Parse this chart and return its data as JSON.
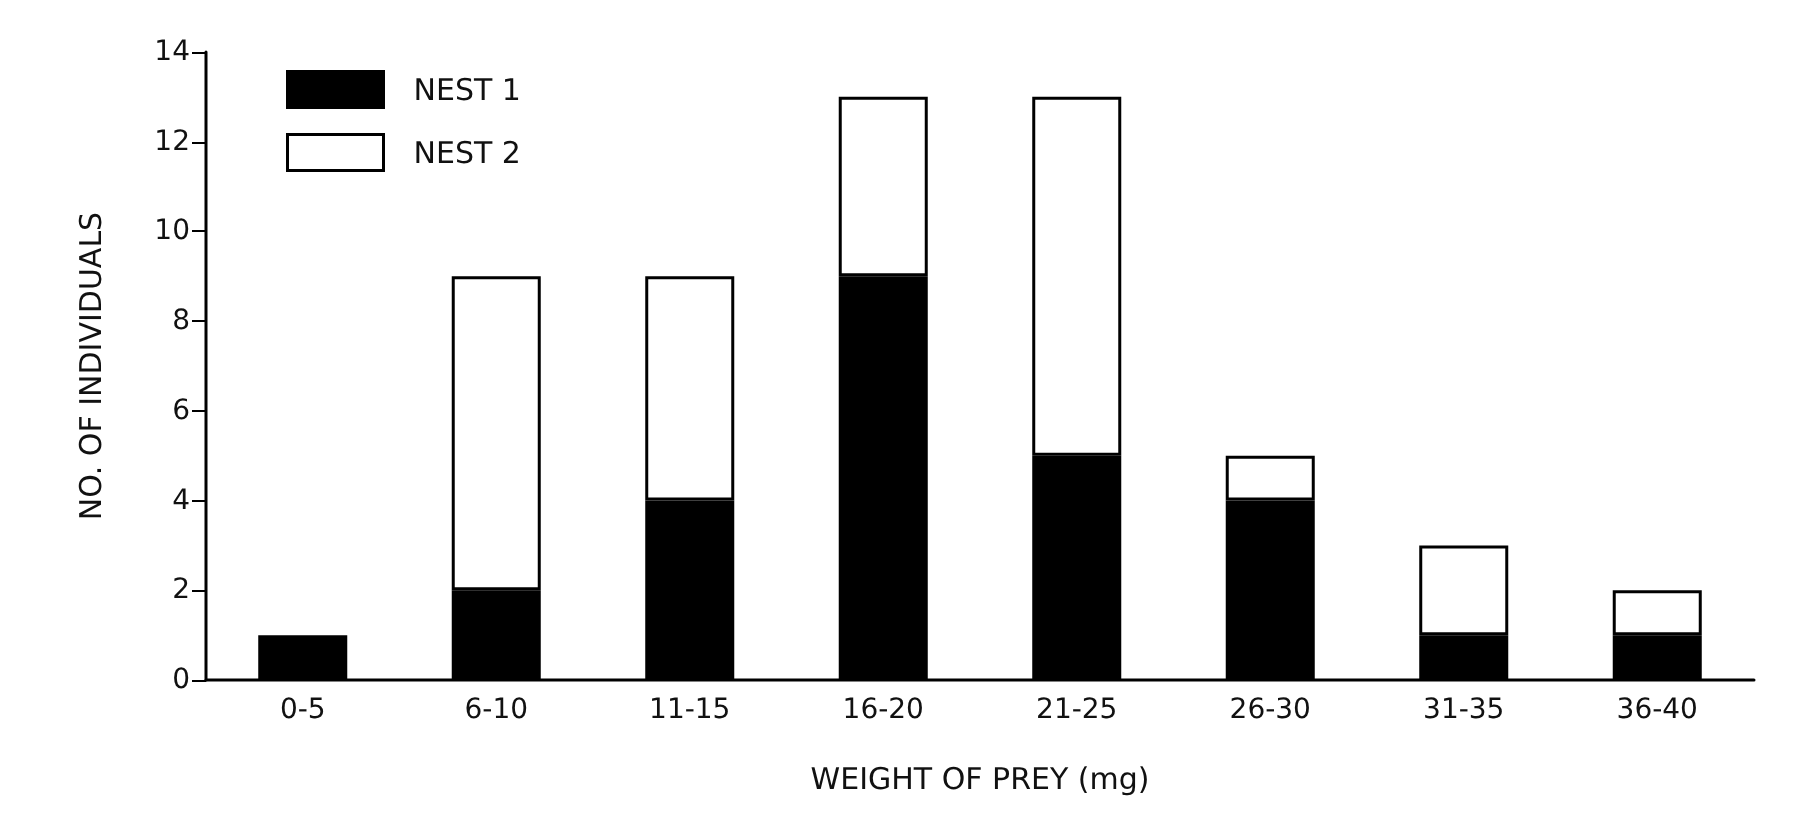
{
  "chart_data": {
    "type": "bar",
    "stacked": true,
    "xlabel": "WEIGHT OF PREY (mg)",
    "ylabel": "NO. OF INDIVIDUALS",
    "categories": [
      "0-5",
      "6-10",
      "11-15",
      "16-20",
      "21-25",
      "26-30",
      "31-35",
      "36-40"
    ],
    "series": [
      {
        "name": "NEST 1",
        "color": "#000000",
        "values": [
          1,
          2,
          4,
          9,
          5,
          4,
          1,
          1
        ]
      },
      {
        "name": "NEST 2",
        "color": "#ffffff",
        "values": [
          0,
          7,
          5,
          4,
          8,
          1,
          2,
          1
        ]
      }
    ],
    "ylim": [
      0,
      14
    ],
    "yticks": [
      0,
      2,
      4,
      6,
      8,
      10,
      12,
      14
    ],
    "grid": false,
    "legend": "top left"
  }
}
